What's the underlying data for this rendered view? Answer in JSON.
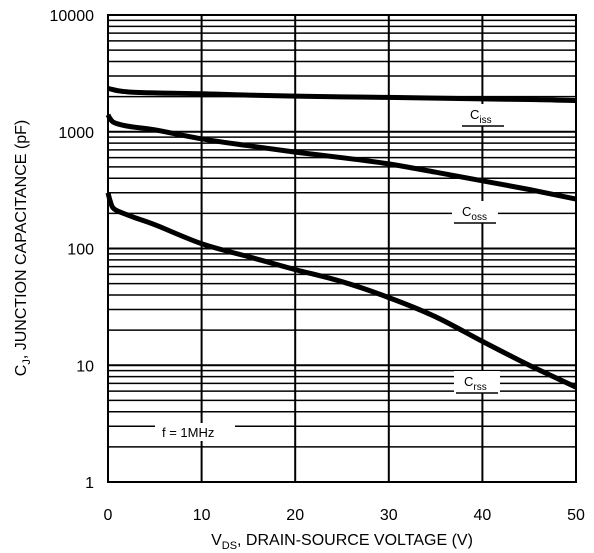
{
  "chart_data": {
    "type": "line",
    "title": "",
    "xlabel_main": "V",
    "xlabel_sub": "DS",
    "xlabel_rest": ", DRAIN-SOURCE VOLTAGE (V)",
    "ylabel_main": "C",
    "ylabel_sub": "J",
    "ylabel_rest": ", JUNCTION CAPACITANCE (pF)",
    "xlim": [
      0,
      50
    ],
    "ylim": [
      1,
      10000
    ],
    "yscale": "log",
    "grid": true,
    "x_ticks": [
      0,
      10,
      20,
      30,
      40,
      50
    ],
    "x_tick_labels": [
      "0",
      "10",
      "20",
      "30",
      "40",
      "50"
    ],
    "y_ticks": [
      1,
      10,
      100,
      1000,
      10000
    ],
    "y_tick_labels": [
      "1",
      "10",
      "100",
      "1000",
      "10000"
    ],
    "annotation": "f = 1MHz",
    "series": [
      {
        "name": "Ciss",
        "label_main": "C",
        "label_sub": "iss",
        "color": "#000000",
        "x": [
          0,
          0.5,
          1,
          2,
          5,
          10,
          15,
          20,
          25,
          30,
          35,
          40,
          45,
          50
        ],
        "y": [
          2350,
          2300,
          2250,
          2200,
          2150,
          2120,
          2060,
          2020,
          1990,
          1970,
          1940,
          1910,
          1890,
          1850
        ]
      },
      {
        "name": "Coss",
        "label_main": "C",
        "label_sub": "oss",
        "color": "#000000",
        "x": [
          0,
          0.2,
          0.5,
          1,
          2,
          3,
          5,
          10,
          15,
          20,
          25,
          30,
          35,
          40,
          45,
          50
        ],
        "y": [
          1400,
          1300,
          1220,
          1170,
          1120,
          1090,
          1040,
          870,
          760,
          670,
          600,
          530,
          450,
          380,
          320,
          265
        ]
      },
      {
        "name": "Crss",
        "label_main": "C",
        "label_sub": "rss",
        "color": "#000000",
        "x": [
          0,
          0.2,
          0.5,
          1,
          2,
          3,
          5,
          10,
          15,
          20,
          25,
          30,
          35,
          40,
          45,
          50
        ],
        "y": [
          300,
          260,
          225,
          210,
          195,
          182,
          160,
          110,
          85,
          66,
          52,
          38,
          26,
          16,
          10,
          6.5
        ]
      }
    ]
  }
}
